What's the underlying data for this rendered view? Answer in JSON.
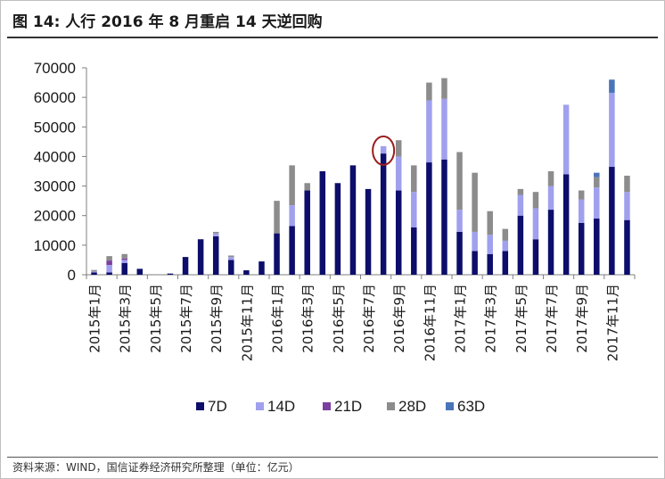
{
  "header": {
    "title": "图 14: 人行 2016 年 8 月重启 14 天逆回购"
  },
  "footer": {
    "source": "资料来源：WIND，国信证券经济研究所整理（单位：亿元）"
  },
  "colors": {
    "7D": "#0d0d6b",
    "14D": "#a0a0ee",
    "21D": "#7b3fa0",
    "28D": "#8c8c8c",
    "63D": "#4a74b8",
    "highlight": "#9b1c1c"
  },
  "chart_data": {
    "type": "bar",
    "stacked": true,
    "title": "",
    "xlabel": "",
    "ylabel": "",
    "ylim": [
      0,
      70000
    ],
    "yticks": [
      0,
      10000,
      20000,
      30000,
      40000,
      50000,
      60000,
      70000
    ],
    "categories": [
      "2015年1月",
      "2015年2月",
      "2015年3月",
      "2015年4月",
      "2015年5月",
      "2015年6月",
      "2015年7月",
      "2015年8月",
      "2015年9月",
      "2015年10月",
      "2015年11月",
      "2015年12月",
      "2016年1月",
      "2016年2月",
      "2016年3月",
      "2016年4月",
      "2016年5月",
      "2016年6月",
      "2016年7月",
      "2016年8月",
      "2016年9月",
      "2016年10月",
      "2016年11月",
      "2016年12月",
      "2017年1月",
      "2017年2月",
      "2017年3月",
      "2017年4月",
      "2017年5月",
      "2017年6月",
      "2017年7月",
      "2017年8月",
      "2017年9月",
      "2017年10月",
      "2017年11月",
      "2017年12月"
    ],
    "xtick_labels": [
      "2015年1月",
      "2015年3月",
      "2015年5月",
      "2015年7月",
      "2015年9月",
      "2015年11月",
      "2016年1月",
      "2016年3月",
      "2016年5月",
      "2016年7月",
      "2016年9月",
      "2016年11月",
      "2017年1月",
      "2017年3月",
      "2017年5月",
      "2017年7月",
      "2017年9月",
      "2017年11月"
    ],
    "series": [
      {
        "name": "7D",
        "values": [
          800,
          800,
          4000,
          2000,
          0,
          400,
          6000,
          12000,
          13000,
          5000,
          1500,
          4500,
          14000,
          16500,
          28500,
          35000,
          31000,
          37000,
          29000,
          41000,
          28500,
          16000,
          38000,
          39000,
          14500,
          8000,
          7000,
          8000,
          20000,
          12000,
          22000,
          34000,
          17500,
          19000,
          36500,
          18500
        ]
      },
      {
        "name": "14D",
        "values": [
          300,
          2500,
          1000,
          0,
          0,
          0,
          0,
          0,
          1000,
          1000,
          0,
          0,
          0,
          7000,
          0,
          0,
          0,
          0,
          0,
          2500,
          11500,
          12000,
          21000,
          20500,
          7500,
          6500,
          6500,
          3500,
          7000,
          10500,
          8000,
          23500,
          8000,
          10500,
          25000,
          9500
        ]
      },
      {
        "name": "21D",
        "values": [
          0,
          1500,
          500,
          0,
          0,
          0,
          0,
          0,
          0,
          0,
          0,
          0,
          0,
          0,
          0,
          0,
          0,
          0,
          0,
          0,
          0,
          0,
          0,
          0,
          0,
          0,
          0,
          0,
          0,
          0,
          0,
          0,
          0,
          0,
          0,
          0
        ]
      },
      {
        "name": "28D",
        "values": [
          500,
          1500,
          1500,
          0,
          0,
          0,
          0,
          0,
          500,
          500,
          0,
          0,
          11000,
          13500,
          2500,
          0,
          0,
          0,
          0,
          0,
          5500,
          9000,
          6000,
          7000,
          19500,
          20000,
          8000,
          4000,
          2000,
          5500,
          5000,
          0,
          3000,
          3500,
          0,
          5500
        ]
      },
      {
        "name": "63D",
        "values": [
          0,
          0,
          0,
          0,
          0,
          0,
          0,
          0,
          0,
          0,
          0,
          0,
          0,
          0,
          0,
          0,
          0,
          0,
          0,
          0,
          0,
          0,
          0,
          0,
          0,
          0,
          0,
          0,
          0,
          0,
          0,
          0,
          0,
          1500,
          4500,
          0
        ]
      }
    ],
    "legend": [
      "7D",
      "14D",
      "21D",
      "28D",
      "63D"
    ],
    "legend_position": "bottom",
    "grid": false,
    "annotation": {
      "type": "circle",
      "category": "2016年8月"
    }
  }
}
